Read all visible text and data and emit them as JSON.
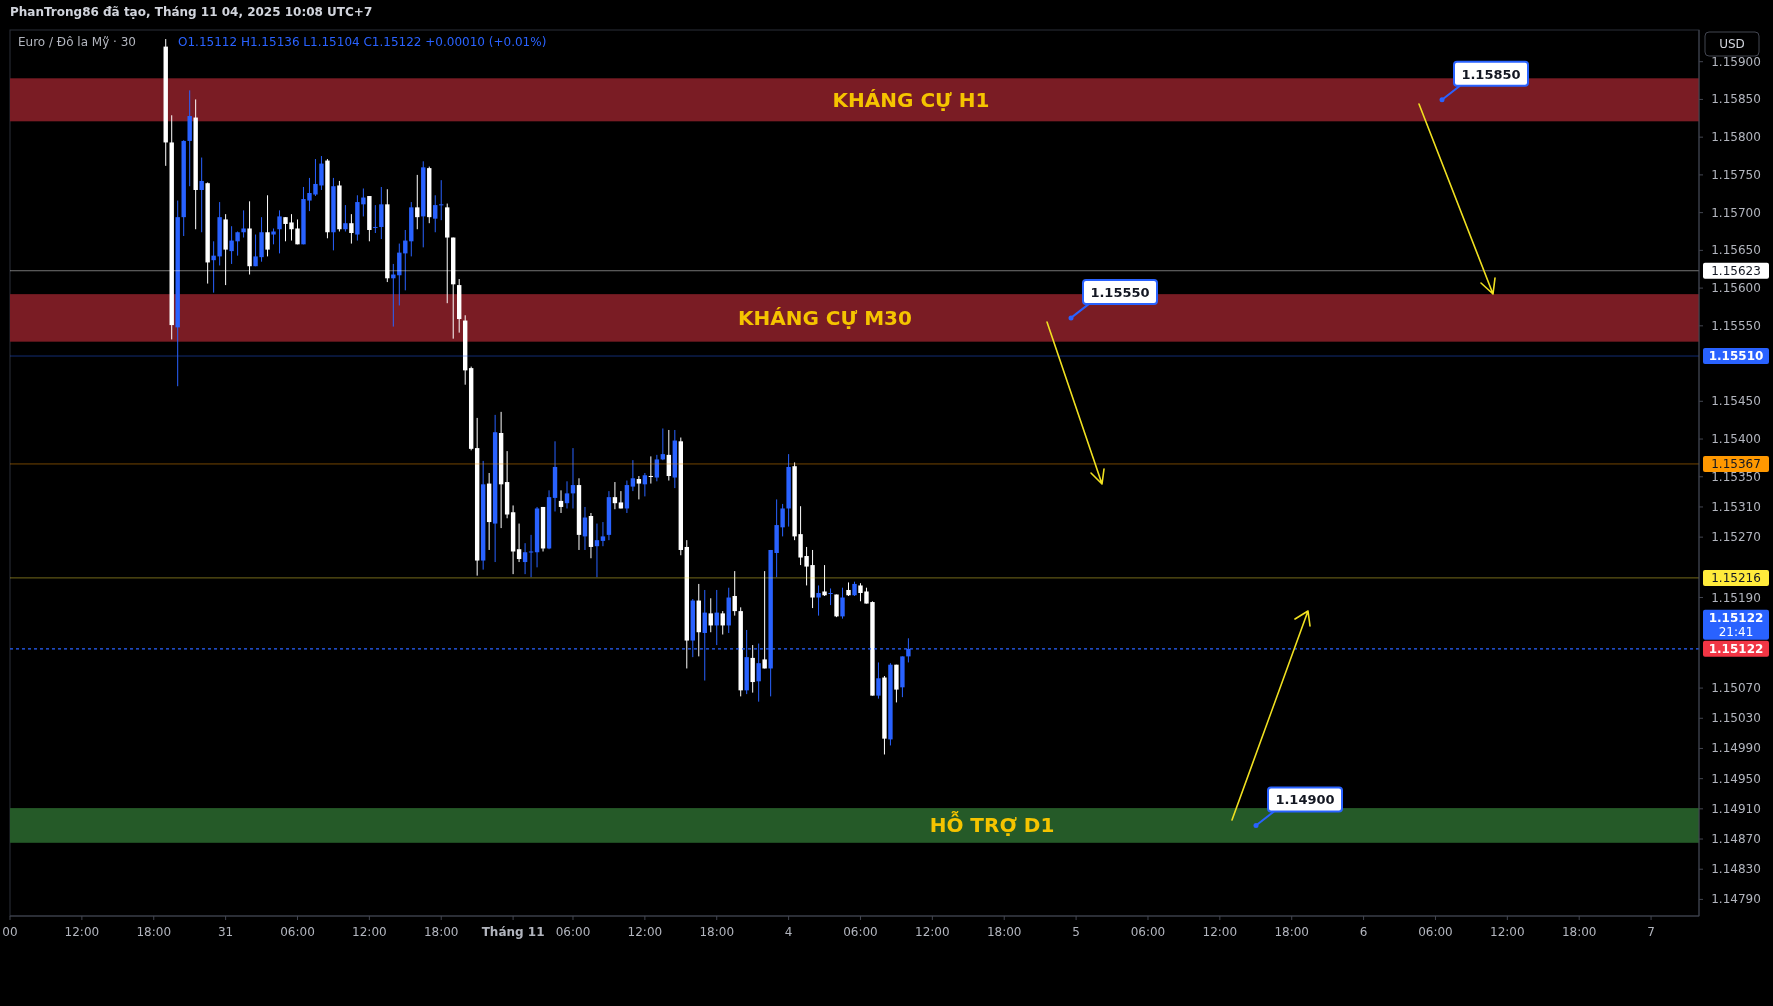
{
  "chart_data": {
    "type": "candlestick",
    "title": "Euro / Đô la Mỹ · 30",
    "subtitle": "O1.15112 H1.15136 L1.15104 C1.15122 +0.00010 (+0.01%)",
    "ylabel": "USD",
    "ylim": [
      1.14768,
      1.15942
    ],
    "yticks": [
      {
        "value": 1.159,
        "label": "1.15900"
      },
      {
        "value": 1.1585,
        "label": "1.15850"
      },
      {
        "value": 1.158,
        "label": "1.15800"
      },
      {
        "value": 1.1575,
        "label": "1.15750"
      },
      {
        "value": 1.157,
        "label": "1.15700"
      },
      {
        "value": 1.1565,
        "label": "1.15650"
      },
      {
        "value": 1.156,
        "label": "1.15600"
      },
      {
        "value": 1.1555,
        "label": "1.15550"
      },
      {
        "value": 1.1545,
        "label": "1.15450"
      },
      {
        "value": 1.154,
        "label": "1.15400"
      },
      {
        "value": 1.1535,
        "label": "1.15350"
      },
      {
        "value": 1.1531,
        "label": "1.15310"
      },
      {
        "value": 1.1527,
        "label": "1.15270"
      },
      {
        "value": 1.1519,
        "label": "1.15190"
      },
      {
        "value": 1.1507,
        "label": "1.15070"
      },
      {
        "value": 1.1503,
        "label": "1.15030"
      },
      {
        "value": 1.1499,
        "label": "1.14990"
      },
      {
        "value": 1.1495,
        "label": "1.14950"
      },
      {
        "value": 1.1491,
        "label": "1.14910"
      },
      {
        "value": 1.1487,
        "label": "1.14870"
      },
      {
        "value": 1.1483,
        "label": "1.14830"
      },
      {
        "value": 1.1479,
        "label": "1.14790"
      }
    ],
    "categories": [
      "00",
      null,
      null,
      null,
      null,
      null,
      null,
      null,
      null,
      null,
      null,
      null,
      "12:00",
      null,
      null,
      null,
      null,
      null,
      null,
      null,
      null,
      null,
      null,
      null,
      "18:00",
      null,
      null,
      null,
      null,
      null,
      null,
      null,
      null,
      null,
      null,
      null,
      "31",
      null,
      null,
      null,
      null,
      null,
      null,
      null,
      null,
      null,
      null,
      null,
      "06:00",
      null,
      null,
      null,
      null,
      null,
      null,
      null,
      null,
      null,
      null,
      null,
      "12:00",
      null,
      null,
      null,
      null,
      null,
      null,
      null,
      null,
      null,
      null,
      null,
      "18:00",
      null,
      null,
      null,
      null,
      null,
      null,
      null,
      null,
      null,
      null,
      null,
      "Tháng 11",
      null,
      null,
      null,
      null,
      null,
      null,
      null,
      null,
      null,
      "06:00",
      null,
      null,
      null,
      null,
      null,
      null,
      null,
      null,
      null,
      null,
      null,
      "12:00",
      null,
      null,
      null,
      null,
      null,
      null,
      null,
      null,
      null,
      null,
      null,
      "18:00",
      null,
      null,
      null,
      null,
      null,
      null,
      null,
      null,
      null,
      null,
      null,
      "4",
      null,
      null,
      null,
      null,
      null,
      null,
      null,
      null,
      null,
      null,
      null,
      "06:00",
      null,
      null,
      null,
      null,
      null,
      null,
      null,
      null,
      null,
      null,
      null,
      "12:00",
      null,
      null,
      null,
      null,
      null,
      null,
      null,
      null,
      null,
      null,
      null,
      "18:00",
      null,
      null,
      null,
      null,
      null,
      null,
      null,
      null,
      null,
      null,
      null,
      "5",
      null,
      null,
      null,
      null,
      null,
      null,
      null,
      null,
      null,
      null,
      null,
      "06:00",
      null,
      null,
      null,
      null,
      null,
      null,
      null,
      null,
      null,
      null,
      null,
      "12:00",
      null,
      null,
      null,
      null,
      null,
      null,
      null,
      null,
      null,
      null,
      null,
      "18:00",
      null,
      null,
      null,
      null,
      null,
      null,
      null,
      null,
      null,
      null,
      null,
      "6",
      null,
      null,
      null,
      null,
      null,
      null,
      null,
      null,
      null,
      null,
      null,
      "06:00",
      null,
      null,
      null,
      null,
      null,
      null,
      null,
      null,
      null,
      null,
      null,
      "12:00",
      null,
      null,
      null,
      null,
      null,
      null,
      null,
      null,
      null,
      null,
      null,
      "18:00",
      null,
      null,
      null,
      null,
      null,
      null,
      null,
      null,
      null,
      null,
      null,
      "7",
      null,
      null,
      null,
      null,
      null,
      null,
      null
    ],
    "ohlc": [
      null,
      null,
      null,
      null,
      null,
      null,
      null,
      null,
      null,
      null,
      null,
      null,
      null,
      null,
      null,
      null,
      null,
      null,
      null,
      null,
      null,
      null,
      null,
      null,
      null,
      null,
      [
        1.1592,
        1.1593,
        1.15762,
        1.15793
      ],
      [
        1.15793,
        1.15829,
        1.15532,
        1.15551
      ],
      [
        1.15548,
        1.15716,
        1.1547,
        1.15694
      ],
      [
        1.15694,
        1.15796,
        1.15669,
        1.15795
      ],
      [
        1.15795,
        1.15862,
        1.15735,
        1.15828
      ],
      [
        1.15826,
        1.1585,
        1.15678,
        1.1573
      ],
      [
        1.1573,
        1.15773,
        1.15674,
        1.15742
      ],
      [
        1.15739,
        1.1574,
        1.15606,
        1.15634
      ],
      [
        1.15637,
        1.15662,
        1.15594,
        1.15643
      ],
      [
        1.15642,
        1.15714,
        1.1563,
        1.15694
      ],
      [
        1.15691,
        1.15698,
        1.15604,
        1.15651
      ],
      [
        1.15649,
        1.15682,
        1.15632,
        1.15663
      ],
      [
        1.15662,
        1.15675,
        1.15643,
        1.15674
      ],
      [
        1.15674,
        1.15703,
        1.15667,
        1.15679
      ],
      [
        1.15679,
        1.15715,
        1.15618,
        1.15629
      ],
      [
        1.15629,
        1.15671,
        1.15629,
        1.15642
      ],
      [
        1.15641,
        1.15694,
        1.15635,
        1.15674
      ],
      [
        1.15674,
        1.15723,
        1.15642,
        1.15651
      ],
      [
        1.15671,
        1.15679,
        1.15658,
        1.15675
      ],
      [
        1.15678,
        1.15703,
        1.15646,
        1.15695
      ],
      [
        1.15694,
        1.15694,
        1.15662,
        1.15685
      ],
      [
        1.15687,
        1.15698,
        1.15663,
        1.15678
      ],
      [
        1.15679,
        1.15691,
        1.15658,
        1.15658
      ],
      [
        1.15658,
        1.15734,
        1.15658,
        1.15718
      ],
      [
        1.15716,
        1.15746,
        1.15702,
        1.15726
      ],
      [
        1.15724,
        1.15771,
        1.15722,
        1.15738
      ],
      [
        1.15736,
        1.15775,
        1.1573,
        1.15765
      ],
      [
        1.15769,
        1.15771,
        1.15666,
        1.15674
      ],
      [
        1.15674,
        1.15746,
        1.1565,
        1.15735
      ],
      [
        1.15736,
        1.15742,
        1.15675,
        1.15678
      ],
      [
        1.15678,
        1.1571,
        1.15675,
        1.15686
      ],
      [
        1.15686,
        1.15698,
        1.15659,
        1.15673
      ],
      [
        1.15671,
        1.15723,
        1.15663,
        1.15714
      ],
      [
        1.15711,
        1.15732,
        1.15695,
        1.1572
      ],
      [
        1.15722,
        1.15722,
        1.15662,
        1.15677
      ],
      [
        1.1568,
        1.1571,
        1.15673,
        1.15681
      ],
      [
        1.15681,
        1.15734,
        1.15665,
        1.15711
      ],
      [
        1.15711,
        1.15731,
        1.15608,
        1.15613
      ],
      [
        1.15613,
        1.15632,
        1.15549,
        1.15618
      ],
      [
        1.15617,
        1.15659,
        1.15577,
        1.15647
      ],
      [
        1.15646,
        1.15677,
        1.15597,
        1.15663
      ],
      [
        1.15662,
        1.15714,
        1.15642,
        1.15707
      ],
      [
        1.15707,
        1.1575,
        1.15678,
        1.15694
      ],
      [
        1.15695,
        1.15768,
        1.15654,
        1.1576
      ],
      [
        1.15759,
        1.15761,
        1.15686,
        1.15694
      ],
      [
        1.15692,
        1.15723,
        1.15674,
        1.1571
      ],
      [
        1.1571,
        1.15743,
        1.1569,
        1.15711
      ],
      [
        1.15707,
        1.15712,
        1.1558,
        1.15667
      ],
      [
        1.15667,
        1.15667,
        1.15533,
        1.15605
      ],
      [
        1.15604,
        1.15612,
        1.15541,
        1.15559
      ],
      [
        1.15557,
        1.15564,
        1.15472,
        1.15491
      ],
      [
        1.15494,
        1.15496,
        1.15385,
        1.15387
      ],
      [
        1.15388,
        1.15428,
        1.15219,
        1.15239
      ],
      [
        1.15239,
        1.15371,
        1.15227,
        1.1534
      ],
      [
        1.15341,
        1.15355,
        1.15253,
        1.1529
      ],
      [
        1.15288,
        1.15432,
        1.15237,
        1.15409
      ],
      [
        1.15408,
        1.15436,
        1.15282,
        1.1534
      ],
      [
        1.15343,
        1.15384,
        1.15295,
        1.153
      ],
      [
        1.15303,
        1.15312,
        1.15221,
        1.15251
      ],
      [
        1.15254,
        1.15288,
        1.15237,
        1.15241
      ],
      [
        1.15237,
        1.15262,
        1.15221,
        1.1525
      ],
      [
        1.1525,
        1.15273,
        1.15217,
        1.15251
      ],
      [
        1.1525,
        1.1531,
        1.1523,
        1.15308
      ],
      [
        1.1531,
        1.1531,
        1.15251,
        1.15255
      ],
      [
        1.15255,
        1.15332,
        1.15254,
        1.15323
      ],
      [
        1.15322,
        1.15397,
        1.15304,
        1.15363
      ],
      [
        1.15318,
        1.15332,
        1.15302,
        1.1531
      ],
      [
        1.15315,
        1.15344,
        1.15308,
        1.15328
      ],
      [
        1.15328,
        1.15388,
        1.15308,
        1.15339
      ],
      [
        1.15339,
        1.15348,
        1.15253,
        1.15273
      ],
      [
        1.15271,
        1.1531,
        1.15253,
        1.15296
      ],
      [
        1.15298,
        1.15302,
        1.15242,
        1.15257
      ],
      [
        1.15258,
        1.15288,
        1.15217,
        1.15266
      ],
      [
        1.15265,
        1.1529,
        1.15258,
        1.15271
      ],
      [
        1.15273,
        1.15331,
        1.15266,
        1.15323
      ],
      [
        1.15323,
        1.15343,
        1.15307,
        1.15315
      ],
      [
        1.15316,
        1.15331,
        1.15308,
        1.15308
      ],
      [
        1.15308,
        1.15345,
        1.15302,
        1.15339
      ],
      [
        1.15337,
        1.15372,
        1.15331,
        1.15348
      ],
      [
        1.15347,
        1.15351,
        1.1532,
        1.15341
      ],
      [
        1.1534,
        1.15355,
        1.15324,
        1.15352
      ],
      [
        1.15351,
        1.15377,
        1.15341,
        1.1535
      ],
      [
        1.15349,
        1.15379,
        1.15344,
        1.15373
      ],
      [
        1.15373,
        1.15414,
        1.15372,
        1.1538
      ],
      [
        1.15379,
        1.15412,
        1.15345,
        1.15351
      ],
      [
        1.15349,
        1.15412,
        1.15335,
        1.15398
      ],
      [
        1.15397,
        1.15402,
        1.15246,
        1.15253
      ],
      [
        1.15257,
        1.15266,
        1.15096,
        1.15133
      ],
      [
        1.15133,
        1.15188,
        1.15111,
        1.15186
      ],
      [
        1.15186,
        1.15208,
        1.15112,
        1.15144
      ],
      [
        1.15143,
        1.152,
        1.1508,
        1.1517
      ],
      [
        1.15169,
        1.15189,
        1.15144,
        1.15153
      ],
      [
        1.15153,
        1.152,
        1.15127,
        1.1517
      ],
      [
        1.15169,
        1.15172,
        1.15141,
        1.15153
      ],
      [
        1.15153,
        1.15203,
        1.15143,
        1.1519
      ],
      [
        1.15192,
        1.15225,
        1.15166,
        1.15172
      ],
      [
        1.15172,
        1.15177,
        1.15059,
        1.15067
      ],
      [
        1.15067,
        1.15147,
        1.15062,
        1.15111
      ],
      [
        1.1511,
        1.15127,
        1.15064,
        1.15078
      ],
      [
        1.15079,
        1.15129,
        1.15052,
        1.15103
      ],
      [
        1.15108,
        1.15225,
        1.15096,
        1.15096
      ],
      [
        1.15096,
        1.15253,
        1.15059,
        1.15253
      ],
      [
        1.15249,
        1.1532,
        1.15217,
        1.15286
      ],
      [
        1.15283,
        1.15314,
        1.15271,
        1.15308
      ],
      [
        1.15308,
        1.1538,
        1.15284,
        1.15363
      ],
      [
        1.15364,
        1.15369,
        1.15266,
        1.15271
      ],
      [
        1.15274,
        1.15311,
        1.15233,
        1.15243
      ],
      [
        1.15245,
        1.15257,
        1.15206,
        1.15231
      ],
      [
        1.15233,
        1.15253,
        1.15176,
        1.1519
      ],
      [
        1.1519,
        1.15206,
        1.15166,
        1.15196
      ],
      [
        1.15198,
        1.15233,
        1.15192,
        1.15193
      ],
      [
        1.15195,
        1.15202,
        1.1518,
        1.15196
      ],
      [
        1.15194,
        1.15194,
        1.15164,
        1.15165
      ],
      [
        1.15165,
        1.15203,
        1.15162,
        1.1519
      ],
      [
        1.152,
        1.1521,
        1.15192,
        1.15193
      ],
      [
        1.15193,
        1.15211,
        1.15192,
        1.15208
      ],
      [
        1.15206,
        1.15209,
        1.15185,
        1.15196
      ],
      [
        1.15198,
        1.15203,
        1.15182,
        1.15182
      ],
      [
        1.15184,
        1.15185,
        1.1506,
        1.1506
      ],
      [
        1.1506,
        1.15104,
        1.15056,
        1.15083
      ],
      [
        1.15084,
        1.15086,
        1.14982,
        1.15003
      ],
      [
        1.15002,
        1.15103,
        1.14994,
        1.15101
      ],
      [
        1.15101,
        1.15101,
        1.15051,
        1.15068
      ],
      [
        1.15071,
        1.15112,
        1.15058,
        1.15112
      ],
      [
        1.15112,
        1.15136,
        1.15104,
        1.15122
      ],
      null,
      null,
      null,
      null,
      null,
      null,
      null,
      null,
      null,
      null,
      null,
      null,
      null,
      null,
      null,
      null,
      null,
      null,
      null,
      null,
      null,
      null,
      null,
      null,
      null,
      null,
      null,
      null,
      null,
      null,
      null,
      null,
      null,
      null,
      null,
      null,
      null,
      null,
      null,
      null,
      null,
      null,
      null,
      null,
      null,
      null,
      null,
      null,
      null,
      null,
      null,
      null,
      null,
      null,
      null,
      null,
      null,
      null,
      null,
      null,
      null,
      null,
      null,
      null,
      null,
      null,
      null,
      null,
      null,
      null,
      null,
      null,
      null,
      null,
      null,
      null,
      null,
      null,
      null,
      null,
      null,
      null,
      null,
      null,
      null,
      null,
      null,
      null,
      null,
      null,
      null,
      null,
      null,
      null,
      null,
      null,
      null,
      null,
      null,
      null,
      null,
      null,
      null,
      null,
      null,
      null,
      null,
      null,
      null,
      null,
      null,
      null,
      null,
      null,
      null,
      null,
      null,
      null,
      null,
      null,
      null,
      null,
      null,
      null,
      null,
      null,
      null,
      null,
      null,
      null,
      null
    ],
    "colors": [
      null,
      null,
      null,
      null,
      null,
      null,
      null,
      null,
      null,
      null,
      null,
      null,
      null,
      null,
      null,
      null,
      null,
      null,
      null,
      null,
      null,
      null,
      null,
      null,
      null,
      null,
      "#ffffff",
      "#ffffff",
      "#2962ff",
      "#2962ff",
      "#2962ff",
      "#ffffff",
      "#2962ff",
      "#ffffff",
      "#2962ff",
      "#2962ff",
      "#ffffff",
      "#2962ff",
      "#2962ff",
      "#2962ff",
      "#ffffff",
      "#2962ff",
      "#2962ff",
      "#ffffff",
      "#2962ff",
      "#2962ff",
      "#ffffff",
      "#ffffff",
      "#ffffff",
      "#2962ff",
      "#2962ff",
      "#2962ff",
      "#2962ff",
      "#ffffff",
      "#2962ff",
      "#ffffff",
      "#2962ff",
      "#ffffff",
      "#2962ff",
      "#2962ff",
      "#ffffff",
      "#2962ff",
      "#2962ff",
      "#ffffff",
      "#2962ff",
      "#2962ff",
      "#2962ff",
      "#2962ff",
      "#ffffff",
      "#2962ff",
      "#ffffff",
      "#2962ff",
      "#2962ff",
      "#ffffff",
      "#ffffff",
      "#ffffff",
      "#ffffff",
      "#ffffff",
      "#ffffff",
      "#2962ff",
      "#ffffff",
      "#2962ff",
      "#ffffff",
      "#ffffff",
      "#ffffff",
      "#ffffff",
      "#2962ff",
      "#2962ff",
      "#2962ff",
      "#ffffff",
      "#2962ff",
      "#2962ff",
      "#ffffff",
      "#2962ff",
      "#2962ff",
      "#ffffff",
      "#2962ff",
      "#ffffff",
      "#2962ff",
      "#2962ff",
      "#2962ff",
      "#ffffff",
      "#ffffff",
      "#2962ff",
      "#2962ff",
      "#ffffff",
      "#2962ff",
      "#ffffff",
      "#2962ff",
      "#2962ff",
      "#ffffff",
      "#2962ff",
      "#ffffff",
      "#ffffff",
      "#2962ff",
      "#ffffff",
      "#2962ff",
      "#ffffff",
      "#2962ff",
      "#ffffff",
      "#2962ff",
      "#ffffff",
      "#ffffff",
      "#2962ff",
      "#ffffff",
      "#2962ff",
      "#ffffff",
      "#2962ff",
      "#2962ff",
      "#2962ff",
      "#2962ff",
      "#ffffff",
      "#ffffff",
      "#ffffff",
      "#ffffff",
      "#2962ff",
      "#ffffff",
      "#2962ff",
      "#ffffff",
      "#2962ff",
      "#ffffff",
      "#2962ff",
      "#ffffff",
      "#ffffff",
      "#ffffff",
      "#2962ff",
      "#ffffff",
      "#2962ff",
      "#ffffff",
      "#2962ff",
      "#2962ff",
      null,
      null,
      null,
      null,
      null,
      null,
      null,
      null,
      null,
      null,
      null,
      null,
      null,
      null,
      null,
      null,
      null,
      null,
      null,
      null,
      null,
      null,
      null,
      null,
      null,
      null,
      null,
      null,
      null,
      null,
      null,
      null,
      null,
      null,
      null,
      null,
      null,
      null,
      null,
      null,
      null,
      null,
      null,
      null,
      null,
      null,
      null,
      null,
      null,
      null,
      null,
      null,
      null,
      null,
      null,
      null,
      null,
      null,
      null,
      null,
      null,
      null,
      null,
      null,
      null,
      null,
      null,
      null,
      null,
      null,
      null,
      null,
      null,
      null,
      null,
      null,
      null,
      null,
      null,
      null,
      null,
      null,
      null,
      null,
      null,
      null,
      null,
      null,
      null,
      null,
      null,
      null,
      null,
      null,
      null,
      null,
      null,
      null,
      null,
      null,
      null,
      null,
      null,
      null,
      null,
      null,
      null,
      null,
      null,
      null,
      null,
      null,
      null,
      null,
      null,
      null,
      null,
      null,
      null,
      null,
      null,
      null,
      null,
      null,
      null,
      null,
      null,
      null,
      null,
      null,
      null
    ],
    "bands": [
      {
        "axis": "y",
        "from": 1.15821,
        "to": 1.15878,
        "label": "KHÁNG CỰ H1",
        "color": "#7a1c24"
      },
      {
        "axis": "y",
        "from": 1.15529,
        "to": 1.15592,
        "label": "KHÁNG CỰ M30",
        "color": "#7a1c24"
      },
      {
        "axis": "y",
        "from": 1.14865,
        "to": 1.14911,
        "label": "HỖ TRỢ D1",
        "color": "#255a28"
      }
    ],
    "ref_lines": [
      {
        "axis": "y",
        "value": 1.15623,
        "label": "1.15623",
        "color": "#ffffff"
      },
      {
        "axis": "y",
        "value": 1.1551,
        "label": "1.15510",
        "color": "#2962ff"
      },
      {
        "axis": "y",
        "value": 1.15367,
        "label": "1.15367",
        "color": "#ff9800"
      },
      {
        "axis": "y",
        "value": 1.15216,
        "label": "1.15216",
        "color": "#ffeb3b"
      },
      {
        "axis": "y",
        "value": 1.15122,
        "label": "1.15122",
        "color": "#2962ff",
        "line_style": "dotted"
      }
    ],
    "annotations": [
      "PhanTrong86 đã tạo, Tháng 11 04, 2025 10:08 UTC+7",
      "21:41",
      "1.15850",
      "1.15550",
      "1.14900",
      "1.15122"
    ]
  }
}
